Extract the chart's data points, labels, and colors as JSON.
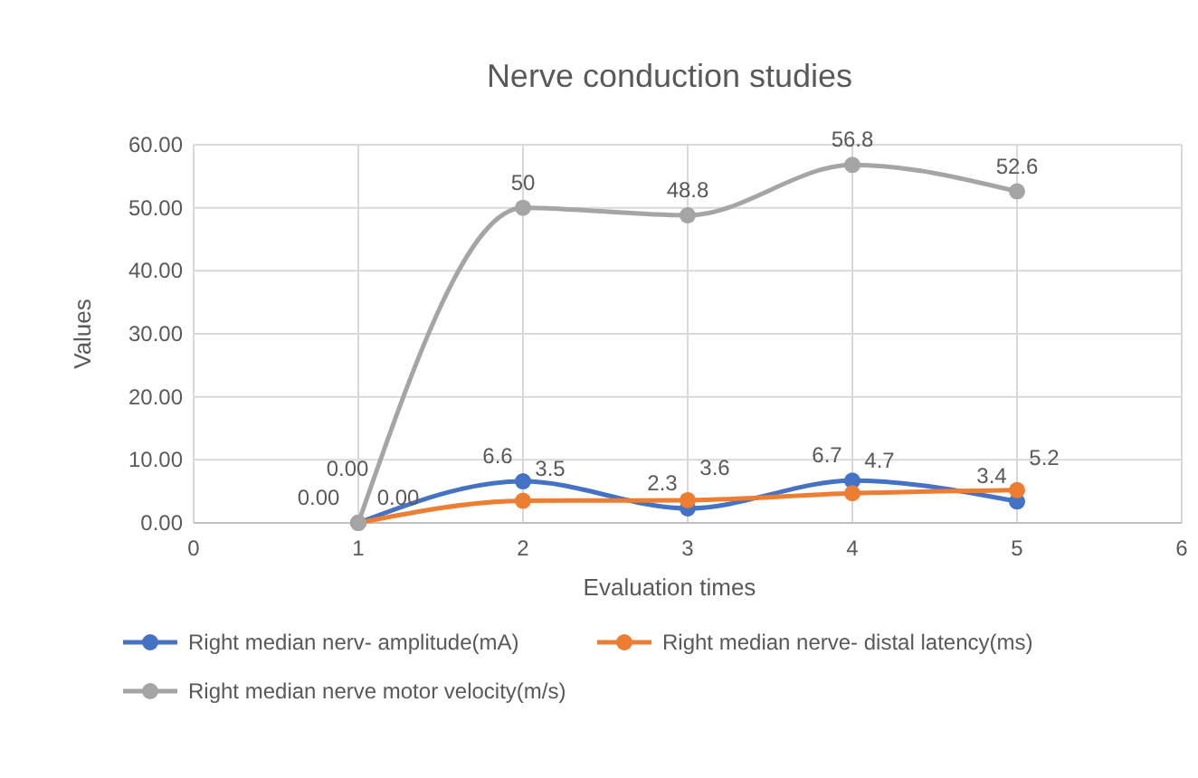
{
  "chart_data": {
    "type": "line",
    "title": "Nerve conduction studies",
    "xlabel": "Evaluation times",
    "ylabel": "Values",
    "x": [
      1,
      2,
      3,
      4,
      5
    ],
    "xlim": [
      0,
      6
    ],
    "xticks": [
      0,
      1,
      2,
      3,
      4,
      5,
      6
    ],
    "ylim": [
      0,
      60
    ],
    "yticks": [
      {
        "value": 0,
        "label": "0.00"
      },
      {
        "value": 10,
        "label": "10.00"
      },
      {
        "value": 20,
        "label": "20.00"
      },
      {
        "value": 30,
        "label": "30.00"
      },
      {
        "value": 40,
        "label": "40.00"
      },
      {
        "value": 50,
        "label": "50.00"
      },
      {
        "value": 60,
        "label": "60.00"
      }
    ],
    "grid": true,
    "legend": "bottom",
    "marker": "circle",
    "line_style": "solid",
    "series": [
      {
        "name": "Right median nerv- amplitude(mA)",
        "color": "#4472c4",
        "values": [
          0,
          6.6,
          2.3,
          6.7,
          3.4
        ],
        "value_labels": [
          "0.00",
          "6.6",
          "2.3",
          "6.7",
          "3.4"
        ]
      },
      {
        "name": "Right median nerve- distal latency(ms)",
        "color": "#ed7d31",
        "values": [
          0,
          3.5,
          3.6,
          4.7,
          5.2
        ],
        "value_labels": [
          "0.00",
          "3.5",
          "3.6",
          "4.7",
          "5.2"
        ]
      },
      {
        "name": "Right median nerve motor velocity(m/s)",
        "color": "#a5a5a5",
        "values": [
          0,
          50,
          48.8,
          56.8,
          52.6
        ],
        "value_labels": [
          "0.00",
          "50",
          "48.8",
          "56.8",
          "52.6"
        ]
      }
    ]
  }
}
